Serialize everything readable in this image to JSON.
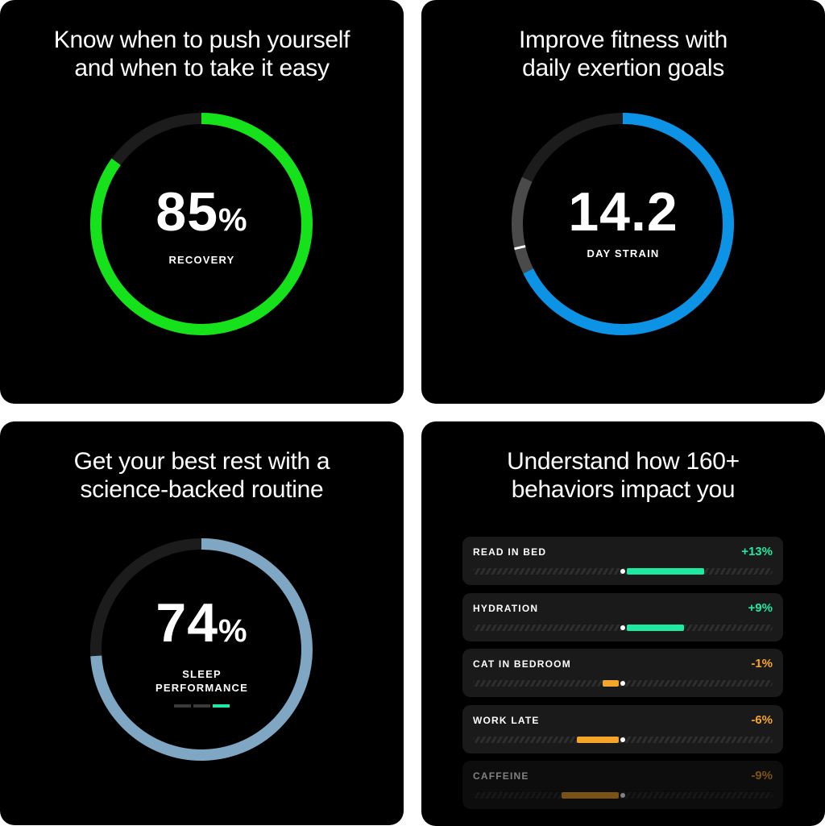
{
  "colors": {
    "recovery": "#16e21b",
    "strain": "#0d93e6",
    "sleep": "#7fa6c2",
    "track": "#1c1c1c",
    "positive": "#1de9a0",
    "negative": "#f6a42a"
  },
  "recovery": {
    "title_line1": "Know when to push yourself",
    "title_line2": "and when to take it easy",
    "value": "85",
    "unit": "%",
    "label": "RECOVERY",
    "percent": 85
  },
  "strain": {
    "title_line1": "Improve fitness with",
    "title_line2": "daily exertion goals",
    "value": "14.2",
    "label": "DAY STRAIN",
    "strain": 14.2,
    "max": 21,
    "target_range": [
      14.2,
      17.2
    ],
    "marker": 15
  },
  "sleep": {
    "title_line1": "Get your best rest with a",
    "title_line2": "science-backed routine",
    "value": "74",
    "unit": "%",
    "label_line1": "SLEEP",
    "label_line2": "PERFORMANCE",
    "percent": 74,
    "level": 3,
    "levels": 3
  },
  "behaviors": {
    "title_line1": "Understand how 160+",
    "title_line2": "behaviors impact you",
    "items": [
      {
        "name": "READ IN BED",
        "impact": "+13%",
        "value": 13
      },
      {
        "name": "HYDRATION",
        "impact": "+9%",
        "value": 9
      },
      {
        "name": "CAT IN BEDROOM",
        "impact": "-1%",
        "value": -1
      },
      {
        "name": "WORK LATE",
        "impact": "-6%",
        "value": -6
      },
      {
        "name": "CAFFEINE",
        "impact": "-9%",
        "value": -9
      }
    ]
  }
}
